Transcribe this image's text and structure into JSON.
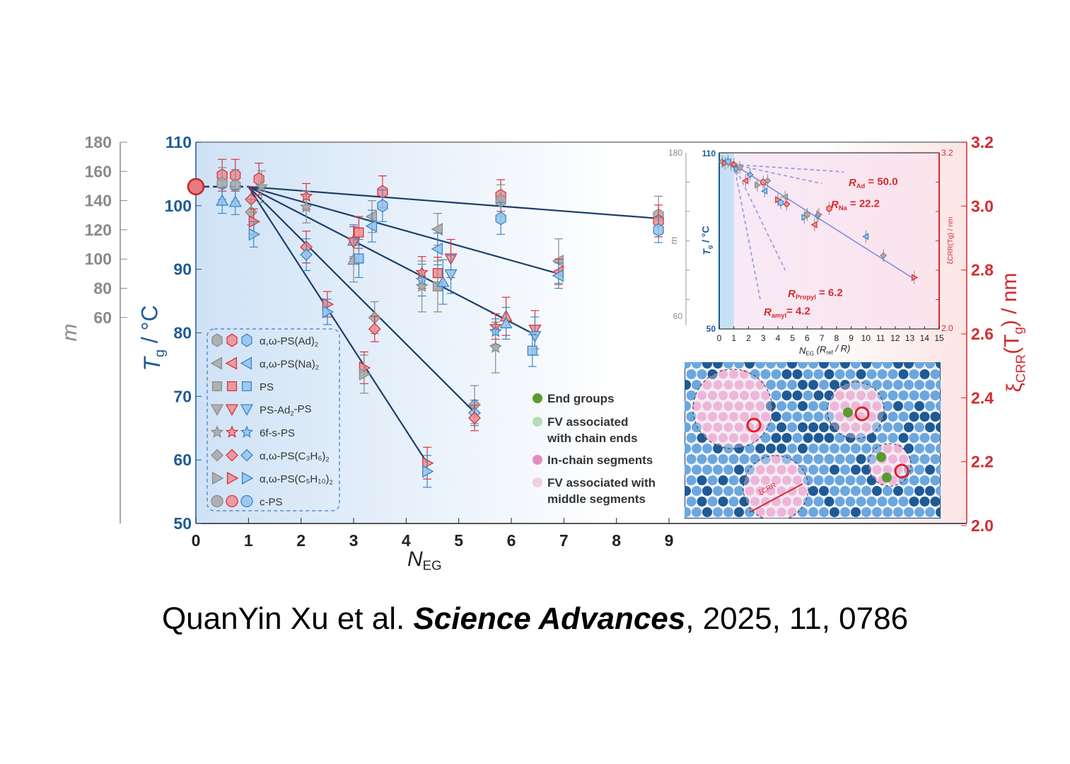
{
  "chart_data": {
    "type": "scatter",
    "title": "",
    "xlabel": "N",
    "xlabel_sub": "EG",
    "ylabel_left": "m",
    "ylabel_mid": "T",
    "ylabel_mid_sub": "g",
    "ylabel_mid_unit": " / °C",
    "ylabel_right": "ξ",
    "ylabel_right_sub": "CRR",
    "ylabel_right_rest": "(T",
    "ylabel_right_rest_sub": "g",
    "ylabel_right_unit": ") / nm",
    "xlim": [
      0,
      9
    ],
    "x_ticks": [
      0,
      1,
      2,
      3,
      4,
      5,
      6,
      7,
      8,
      9
    ],
    "tg_lim": [
      50,
      110
    ],
    "tg_ticks": [
      50,
      60,
      70,
      80,
      90,
      100,
      110
    ],
    "m_ticks": [
      60,
      80,
      100,
      120,
      140,
      160,
      180
    ],
    "xi_lim": [
      2.0,
      3.2
    ],
    "xi_ticks": [
      "2.0",
      "2.2",
      "2.4",
      "2.6",
      "2.8",
      "3.0",
      "3.2"
    ],
    "colors": {
      "gray": "#a3a3a3",
      "red": "#e8868a",
      "blue": "#8fbde8",
      "tg_axis": "#1e5a96",
      "m_axis": "#8a8a8a",
      "xi_axis": "#d42a30",
      "fit": "#1b3f6b"
    },
    "reference_point": {
      "x": 0,
      "tg": 103
    },
    "fit_lines": [
      {
        "from": [
          1.0,
          103
        ],
        "to": [
          8.8,
          98.0
        ]
      },
      {
        "from": [
          1.0,
          103
        ],
        "to": [
          6.9,
          89.3
        ]
      },
      {
        "from": [
          1.0,
          103
        ],
        "to": [
          6.5,
          79.5
        ]
      },
      {
        "from": [
          1.0,
          103
        ],
        "to": [
          5.3,
          67.5
        ]
      },
      {
        "from": [
          1.0,
          103
        ],
        "to": [
          4.4,
          59.5
        ]
      }
    ],
    "legend": [
      {
        "shape": "hexagon",
        "label": "α,ω-PS(Ad)",
        "sub": "2"
      },
      {
        "shape": "tri-left",
        "label": "α,ω-PS(Na)",
        "sub": "2"
      },
      {
        "shape": "square",
        "label": "PS",
        "sub": ""
      },
      {
        "shape": "tri-down",
        "label": "PS-Ad",
        "sub": "2",
        "tail": "-PS"
      },
      {
        "shape": "star",
        "label": "6f-s-PS",
        "sub": ""
      },
      {
        "shape": "diamond",
        "label": "α,ω-PS(C₃H₆)",
        "sub": "2"
      },
      {
        "shape": "tri-right",
        "label": "α,ω-PS(C₅H₁₀)",
        "sub": "2"
      },
      {
        "shape": "circle",
        "label": "c-PS",
        "sub": ""
      }
    ],
    "points": [
      {
        "x": 0.5,
        "tg": 104.8,
        "s": "hexagon",
        "c": "red",
        "e": 2.5
      },
      {
        "x": 0.5,
        "tg": 103.5,
        "s": "hexagon",
        "c": "gray",
        "e": 2.5
      },
      {
        "x": 0.5,
        "tg": 100.8,
        "s": "tri-up",
        "c": "blue",
        "e": 2
      },
      {
        "x": 0.75,
        "tg": 104.8,
        "s": "hexagon",
        "c": "red",
        "e": 2.5
      },
      {
        "x": 0.75,
        "tg": 103.2,
        "s": "hexagon",
        "c": "gray",
        "e": 2.5
      },
      {
        "x": 0.75,
        "tg": 100.6,
        "s": "tri-up",
        "c": "blue",
        "e": 2
      },
      {
        "x": 1.2,
        "tg": 104.2,
        "s": "hexagon",
        "c": "red",
        "e": 2.5
      },
      {
        "x": 1.25,
        "tg": 103,
        "s": "star",
        "c": "gray",
        "e": 2.5
      },
      {
        "x": 1.05,
        "tg": 101,
        "s": "diamond",
        "c": "red",
        "e": 2
      },
      {
        "x": 1.05,
        "tg": 99,
        "s": "diamond",
        "c": "gray",
        "e": 2
      },
      {
        "x": 1.1,
        "tg": 97.5,
        "s": "tri-right",
        "c": "red",
        "e": 2
      },
      {
        "x": 1.1,
        "tg": 95.5,
        "s": "tri-right",
        "c": "blue",
        "e": 2
      },
      {
        "x": 2.1,
        "tg": 101.5,
        "s": "star",
        "c": "red",
        "e": 2
      },
      {
        "x": 2.1,
        "tg": 99.8,
        "s": "star",
        "c": "gray",
        "e": 2.5
      },
      {
        "x": 2.1,
        "tg": 93.5,
        "s": "diamond",
        "c": "red",
        "e": 2.5
      },
      {
        "x": 2.1,
        "tg": 92.3,
        "s": "diamond",
        "c": "blue",
        "e": 2.5
      },
      {
        "x": 2.5,
        "tg": 84.5,
        "s": "tri-right",
        "c": "red",
        "e": 2
      },
      {
        "x": 2.5,
        "tg": 83.3,
        "s": "tri-right",
        "c": "blue",
        "e": 2
      },
      {
        "x": 3.0,
        "tg": 94.5,
        "s": "tri-up",
        "c": "blue",
        "e": 2.5
      },
      {
        "x": 3.0,
        "tg": 94.2,
        "s": "tri-down",
        "c": "red",
        "e": 2.5
      },
      {
        "x": 3.0,
        "tg": 91.5,
        "s": "tri-up",
        "c": "gray",
        "e": 3.5
      },
      {
        "x": 3.1,
        "tg": 95.8,
        "s": "square",
        "c": "red",
        "e": 2.5
      },
      {
        "x": 3.1,
        "tg": 91.7,
        "s": "square",
        "c": "blue",
        "e": 3
      },
      {
        "x": 3.2,
        "tg": 74.5,
        "s": "tri-right",
        "c": "red",
        "e": 2.5
      },
      {
        "x": 3.2,
        "tg": 73.5,
        "s": "tri-right",
        "c": "gray",
        "e": 3
      },
      {
        "x": 3.35,
        "tg": 98.3,
        "s": "tri-left",
        "c": "gray",
        "e": 2.5
      },
      {
        "x": 3.35,
        "tg": 96.8,
        "s": "tri-left",
        "c": "blue",
        "e": 2.5
      },
      {
        "x": 3.4,
        "tg": 82.4,
        "s": "diamond",
        "c": "gray",
        "e": 2.5
      },
      {
        "x": 3.4,
        "tg": 80.6,
        "s": "diamond",
        "c": "red",
        "e": 2
      },
      {
        "x": 3.55,
        "tg": 102.2,
        "s": "hexagon",
        "c": "red",
        "e": 2.5
      },
      {
        "x": 3.55,
        "tg": 100,
        "s": "hexagon",
        "c": "blue",
        "e": 2.5
      },
      {
        "x": 4.3,
        "tg": 89.5,
        "s": "star",
        "c": "red",
        "e": 2.5
      },
      {
        "x": 4.3,
        "tg": 88.3,
        "s": "star",
        "c": "blue",
        "e": 2.5
      },
      {
        "x": 4.3,
        "tg": 87.3,
        "s": "star",
        "c": "gray",
        "e": 4
      },
      {
        "x": 4.4,
        "tg": 59.5,
        "s": "tri-right",
        "c": "red",
        "e": 2.5
      },
      {
        "x": 4.4,
        "tg": 58.2,
        "s": "tri-right",
        "c": "blue",
        "e": 2.5
      },
      {
        "x": 4.6,
        "tg": 96.3,
        "s": "tri-left",
        "c": "gray",
        "e": 2.5
      },
      {
        "x": 4.6,
        "tg": 93.2,
        "s": "tri-left",
        "c": "blue",
        "e": 2.5
      },
      {
        "x": 4.6,
        "tg": 89.4,
        "s": "square",
        "c": "red",
        "e": 2.5
      },
      {
        "x": 4.6,
        "tg": 87.3,
        "s": "square",
        "c": "gray",
        "e": 4
      },
      {
        "x": 4.7,
        "tg": 88,
        "s": "tri-up",
        "c": "blue",
        "e": 3.5
      },
      {
        "x": 4.85,
        "tg": 91.7,
        "s": "tri-down",
        "c": "red",
        "e": 3
      },
      {
        "x": 4.85,
        "tg": 89.2,
        "s": "tri-down",
        "c": "blue",
        "e": 3
      },
      {
        "x": 5.3,
        "tg": 68.7,
        "s": "diamond",
        "c": "gray",
        "e": 3
      },
      {
        "x": 5.3,
        "tg": 67.4,
        "s": "diamond",
        "c": "blue",
        "e": 2
      },
      {
        "x": 5.3,
        "tg": 66.6,
        "s": "diamond",
        "c": "red",
        "e": 2
      },
      {
        "x": 5.7,
        "tg": 81,
        "s": "star",
        "c": "red",
        "e": 2
      },
      {
        "x": 5.7,
        "tg": 80.2,
        "s": "star",
        "c": "blue",
        "e": 2
      },
      {
        "x": 5.7,
        "tg": 77.7,
        "s": "star",
        "c": "gray",
        "e": 4
      },
      {
        "x": 5.8,
        "tg": 101.6,
        "s": "hexagon",
        "c": "red",
        "e": 2.5
      },
      {
        "x": 5.8,
        "tg": 100.8,
        "s": "hexagon",
        "c": "gray",
        "e": 2.5
      },
      {
        "x": 5.8,
        "tg": 98,
        "s": "hexagon",
        "c": "blue",
        "e": 2.5
      },
      {
        "x": 5.9,
        "tg": 82.6,
        "s": "tri-up",
        "c": "red",
        "e": 3
      },
      {
        "x": 5.9,
        "tg": 81.5,
        "s": "tri-up",
        "c": "blue",
        "e": 2.5
      },
      {
        "x": 6.45,
        "tg": 80.5,
        "s": "tri-down",
        "c": "red",
        "e": 3
      },
      {
        "x": 6.45,
        "tg": 79.5,
        "s": "tri-down",
        "c": "blue",
        "e": 3
      },
      {
        "x": 6.4,
        "tg": 77.2,
        "s": "square",
        "c": "blue",
        "e": 2.5
      },
      {
        "x": 6.9,
        "tg": 91.3,
        "s": "tri-left",
        "c": "gray",
        "e": 3.5
      },
      {
        "x": 6.9,
        "tg": 89.6,
        "s": "tri-left",
        "c": "red",
        "e": 2
      },
      {
        "x": 6.9,
        "tg": 89,
        "s": "tri-left",
        "c": "blue",
        "e": 2
      },
      {
        "x": 8.8,
        "tg": 98.5,
        "s": "hexagon",
        "c": "gray",
        "e": 3
      },
      {
        "x": 8.8,
        "tg": 97.6,
        "s": "hexagon",
        "c": "red",
        "e": 2.5
      },
      {
        "x": 8.8,
        "tg": 96.2,
        "s": "hexagon",
        "c": "blue",
        "e": 2
      }
    ],
    "region_legend": [
      {
        "label": "End groups",
        "color": "#5a9a2e"
      },
      {
        "label": "FV associated\nwith chain ends",
        "color": "#b4ddb4"
      },
      {
        "label": "In-chain segments",
        "color": "#e58cc0"
      },
      {
        "label": "FV associated with\n middle segments",
        "color": "#f3cfe3"
      }
    ],
    "inset": {
      "type": "scatter",
      "xlabel": "N",
      "xlabel_sub": "EG",
      "xlabel_rest": " (R",
      "xlabel_rest_sub": "ref",
      "xlabel_tail": " / R)",
      "ylabel_tg": "T",
      "ylabel_tg_sub": "g",
      "ylabel_tg_unit": " / °C",
      "ylabel_m": "m",
      "ylabel_xi": "ξCRR(Tg) / nm",
      "xlim": [
        0,
        15
      ],
      "x_ticks": [
        0,
        1,
        2,
        3,
        4,
        5,
        6,
        7,
        8,
        9,
        10,
        11,
        12,
        13,
        14,
        15
      ],
      "tg_lim": [
        50,
        110
      ],
      "tg_ticks_labeled": [
        "50",
        "110"
      ],
      "m_ticks_labeled": [
        "60",
        "180"
      ],
      "xi_ticks_labeled": [
        "2.0",
        "3.2"
      ],
      "points": [
        [
          0.2,
          107
        ],
        [
          0.4,
          106.5
        ],
        [
          0.6,
          107
        ],
        [
          0.8,
          106
        ],
        [
          1.0,
          106
        ],
        [
          1.2,
          104.5
        ],
        [
          1.4,
          105
        ],
        [
          1.8,
          100.5
        ],
        [
          2.1,
          102.5
        ],
        [
          2.6,
          99
        ],
        [
          3.0,
          100
        ],
        [
          3.1,
          97
        ],
        [
          3.3,
          100.5
        ],
        [
          4.0,
          94
        ],
        [
          4.2,
          93
        ],
        [
          4.5,
          95
        ],
        [
          4.6,
          92.5
        ],
        [
          5.8,
          88
        ],
        [
          6.0,
          89
        ],
        [
          6.5,
          85.5
        ],
        [
          6.7,
          88.5
        ],
        [
          6.8,
          89
        ],
        [
          7.5,
          91
        ],
        [
          10.0,
          81.5
        ],
        [
          11.2,
          75
        ],
        [
          13.3,
          67.5
        ]
      ],
      "fit": {
        "from": [
          1.0,
          106
        ],
        "to": [
          13.3,
          67
        ]
      },
      "dashed": [
        {
          "label": "R",
          "sub": "Ad",
          "value": " = 50.0",
          "to": [
            8.5,
            103.5
          ]
        },
        {
          "label": "R",
          "sub": "Na",
          "value": " = 22.2",
          "to": [
            7,
            99.5
          ]
        },
        {
          "label": "R",
          "sub": "Propyl",
          "value": " = 6.2",
          "to": [
            4.5,
            70
          ]
        },
        {
          "label": "R",
          "sub": "amyl",
          "value": "= 4.2",
          "to": [
            2.8,
            60
          ]
        }
      ]
    },
    "illustration_label": "ξCRR"
  },
  "citation": {
    "authors": "QuanYin Xu et al. ",
    "journal": "Science Advances",
    "rest": ", 2025, 11, 0786"
  }
}
